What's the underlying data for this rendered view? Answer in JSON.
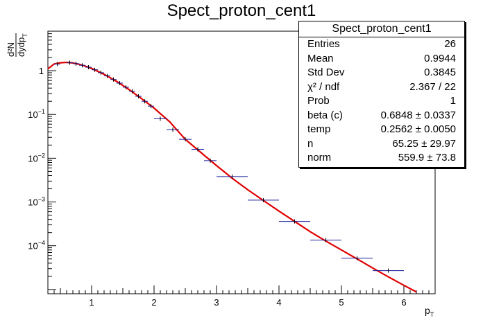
{
  "chart_data": {
    "type": "scatter",
    "title": "Spect_proton_cent1",
    "xlabel_main": "p",
    "xlabel_sub": "T",
    "ylabel_num": "d²N",
    "ylabel_den": "dydp",
    "ylabel_den_sub": "T",
    "xlim": [
      0.3,
      6.5
    ],
    "ylim": [
      8e-06,
      8
    ],
    "yscale": "log",
    "x_ticks": [
      1,
      2,
      3,
      4,
      5,
      6
    ],
    "y_ticks": [
      {
        "exp": "",
        "value": 1,
        "label": "1"
      },
      {
        "exp": "−1",
        "value": 0.1,
        "label": "10"
      },
      {
        "exp": "−2",
        "value": 0.01,
        "label": "10"
      },
      {
        "exp": "−3",
        "value": 0.001,
        "label": "10"
      },
      {
        "exp": "−4",
        "value": 0.0001,
        "label": "10"
      }
    ],
    "points": [
      {
        "x": 0.45,
        "xerr": 0.05,
        "y": 1.42
      },
      {
        "x": 0.65,
        "xerr": 0.05,
        "y": 1.52
      },
      {
        "x": 0.75,
        "xerr": 0.05,
        "y": 1.45
      },
      {
        "x": 0.85,
        "xerr": 0.05,
        "y": 1.33
      },
      {
        "x": 0.95,
        "xerr": 0.05,
        "y": 1.2
      },
      {
        "x": 1.05,
        "xerr": 0.05,
        "y": 1.05
      },
      {
        "x": 1.15,
        "xerr": 0.05,
        "y": 0.9
      },
      {
        "x": 1.25,
        "xerr": 0.05,
        "y": 0.76
      },
      {
        "x": 1.35,
        "xerr": 0.05,
        "y": 0.63
      },
      {
        "x": 1.45,
        "xerr": 0.05,
        "y": 0.52
      },
      {
        "x": 1.55,
        "xerr": 0.05,
        "y": 0.42
      },
      {
        "x": 1.65,
        "xerr": 0.05,
        "y": 0.34
      },
      {
        "x": 1.75,
        "xerr": 0.05,
        "y": 0.26
      },
      {
        "x": 1.85,
        "xerr": 0.05,
        "y": 0.2
      },
      {
        "x": 1.95,
        "xerr": 0.05,
        "y": 0.155
      },
      {
        "x": 2.1,
        "xerr": 0.1,
        "y": 0.08
      },
      {
        "x": 2.3,
        "xerr": 0.1,
        "y": 0.045
      },
      {
        "x": 2.5,
        "xerr": 0.1,
        "y": 0.027
      },
      {
        "x": 2.7,
        "xerr": 0.1,
        "y": 0.016
      },
      {
        "x": 2.9,
        "xerr": 0.1,
        "y": 0.0088
      },
      {
        "x": 3.25,
        "xerr": 0.25,
        "y": 0.0038
      },
      {
        "x": 3.75,
        "xerr": 0.25,
        "y": 0.0011
      },
      {
        "x": 4.25,
        "xerr": 0.25,
        "y": 0.00036
      },
      {
        "x": 4.75,
        "xerr": 0.25,
        "y": 0.000135
      },
      {
        "x": 5.25,
        "xerr": 0.25,
        "y": 5.2e-05
      },
      {
        "x": 5.75,
        "xerr": 0.25,
        "y": 2.7e-05
      }
    ],
    "fit_curve": [
      [
        0.3,
        1.1
      ],
      [
        0.4,
        1.42
      ],
      [
        0.5,
        1.52
      ],
      [
        0.6,
        1.55
      ],
      [
        0.7,
        1.5
      ],
      [
        0.8,
        1.4
      ],
      [
        0.9,
        1.27
      ],
      [
        1.0,
        1.13
      ],
      [
        1.2,
        0.83
      ],
      [
        1.4,
        0.57
      ],
      [
        1.6,
        0.37
      ],
      [
        1.8,
        0.23
      ],
      [
        2.0,
        0.14
      ],
      [
        2.25,
        0.068
      ],
      [
        2.5,
        0.027
      ],
      [
        2.75,
        0.0135
      ],
      [
        3.0,
        0.0068
      ],
      [
        3.25,
        0.0035
      ],
      [
        3.5,
        0.0019
      ],
      [
        3.75,
        0.00108
      ],
      [
        4.0,
        0.00062
      ],
      [
        4.25,
        0.00036
      ],
      [
        4.5,
        0.00021
      ],
      [
        4.75,
        0.000128
      ],
      [
        5.0,
        8e-05
      ],
      [
        5.25,
        5e-05
      ],
      [
        5.5,
        3.1e-05
      ],
      [
        5.75,
        1.95e-05
      ],
      [
        6.0,
        1.25e-05
      ],
      [
        6.2,
        8.8e-06
      ]
    ],
    "colors": {
      "points": "#1a1a99",
      "fit": "#e00000",
      "axis": "#000000"
    }
  },
  "stats": {
    "title": "Spect_proton_cent1",
    "rows": [
      {
        "label": "Entries",
        "value": "26"
      },
      {
        "label": "Mean",
        "value": "0.9944"
      },
      {
        "label": "Std Dev",
        "value": "0.3845"
      },
      {
        "label": "χ² / ndf",
        "value": "2.367 / 22"
      },
      {
        "label": "Prob",
        "value": "1"
      },
      {
        "label": "beta (c)",
        "value": "0.6848  ± 0.0337"
      },
      {
        "label": "temp",
        "value": "0.2562  ± 0.0050"
      },
      {
        "label": "n",
        "value": "65.25  ± 29.97"
      },
      {
        "label": "norm",
        "value": "559.9  ± 73.8"
      }
    ]
  }
}
